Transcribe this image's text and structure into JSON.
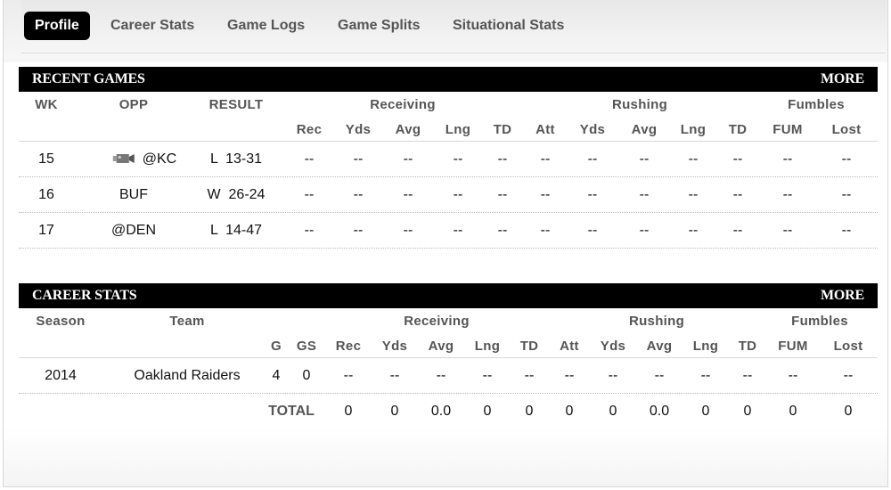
{
  "tabs": [
    "Profile",
    "Career Stats",
    "Game Logs",
    "Game Splits",
    "Situational Stats"
  ],
  "recent": {
    "title": "RECENT GAMES",
    "more": "MORE",
    "groups": {
      "receiving": "Receiving",
      "rushing": "Rushing",
      "fumbles": "Fumbles"
    },
    "col_wk": "WK",
    "col_opp": "OPP",
    "col_result": "RESULT",
    "sub": [
      "Rec",
      "Yds",
      "Avg",
      "Lng",
      "TD",
      "Att",
      "Yds",
      "Avg",
      "Lng",
      "TD",
      "FUM",
      "Lost"
    ],
    "rows": [
      {
        "wk": "15",
        "opp": "@KC",
        "tv_icon": "tv-camera-icon",
        "result": "L  13-31",
        "stats": [
          "--",
          "--",
          "--",
          "--",
          "--",
          "--",
          "--",
          "--",
          "--",
          "--",
          "--",
          "--"
        ]
      },
      {
        "wk": "16",
        "opp": "BUF",
        "result": "W  26-24",
        "stats": [
          "--",
          "--",
          "--",
          "--",
          "--",
          "--",
          "--",
          "--",
          "--",
          "--",
          "--",
          "--"
        ]
      },
      {
        "wk": "17",
        "opp": "@DEN",
        "result": "L  14-47",
        "stats": [
          "--",
          "--",
          "--",
          "--",
          "--",
          "--",
          "--",
          "--",
          "--",
          "--",
          "--",
          "--"
        ]
      }
    ]
  },
  "career": {
    "title": "CAREER STATS",
    "more": "MORE",
    "groups": {
      "receiving": "Receiving",
      "rushing": "Rushing",
      "fumbles": "Fumbles"
    },
    "col_season": "Season",
    "col_team": "Team",
    "sub": [
      "G",
      "GS",
      "Rec",
      "Yds",
      "Avg",
      "Lng",
      "TD",
      "Att",
      "Yds",
      "Avg",
      "Lng",
      "TD",
      "FUM",
      "Lost"
    ],
    "rows": [
      {
        "season": "2014",
        "team": "Oakland Raiders",
        "stats": [
          "4",
          "0",
          "--",
          "--",
          "--",
          "--",
          "--",
          "--",
          "--",
          "--",
          "--",
          "--",
          "--",
          "--"
        ]
      }
    ],
    "total": {
      "label": "TOTAL",
      "stats": [
        "0",
        "0",
        "0.0",
        "0",
        "0",
        "0",
        "0",
        "0.0",
        "0",
        "0",
        "0",
        "0"
      ]
    }
  }
}
